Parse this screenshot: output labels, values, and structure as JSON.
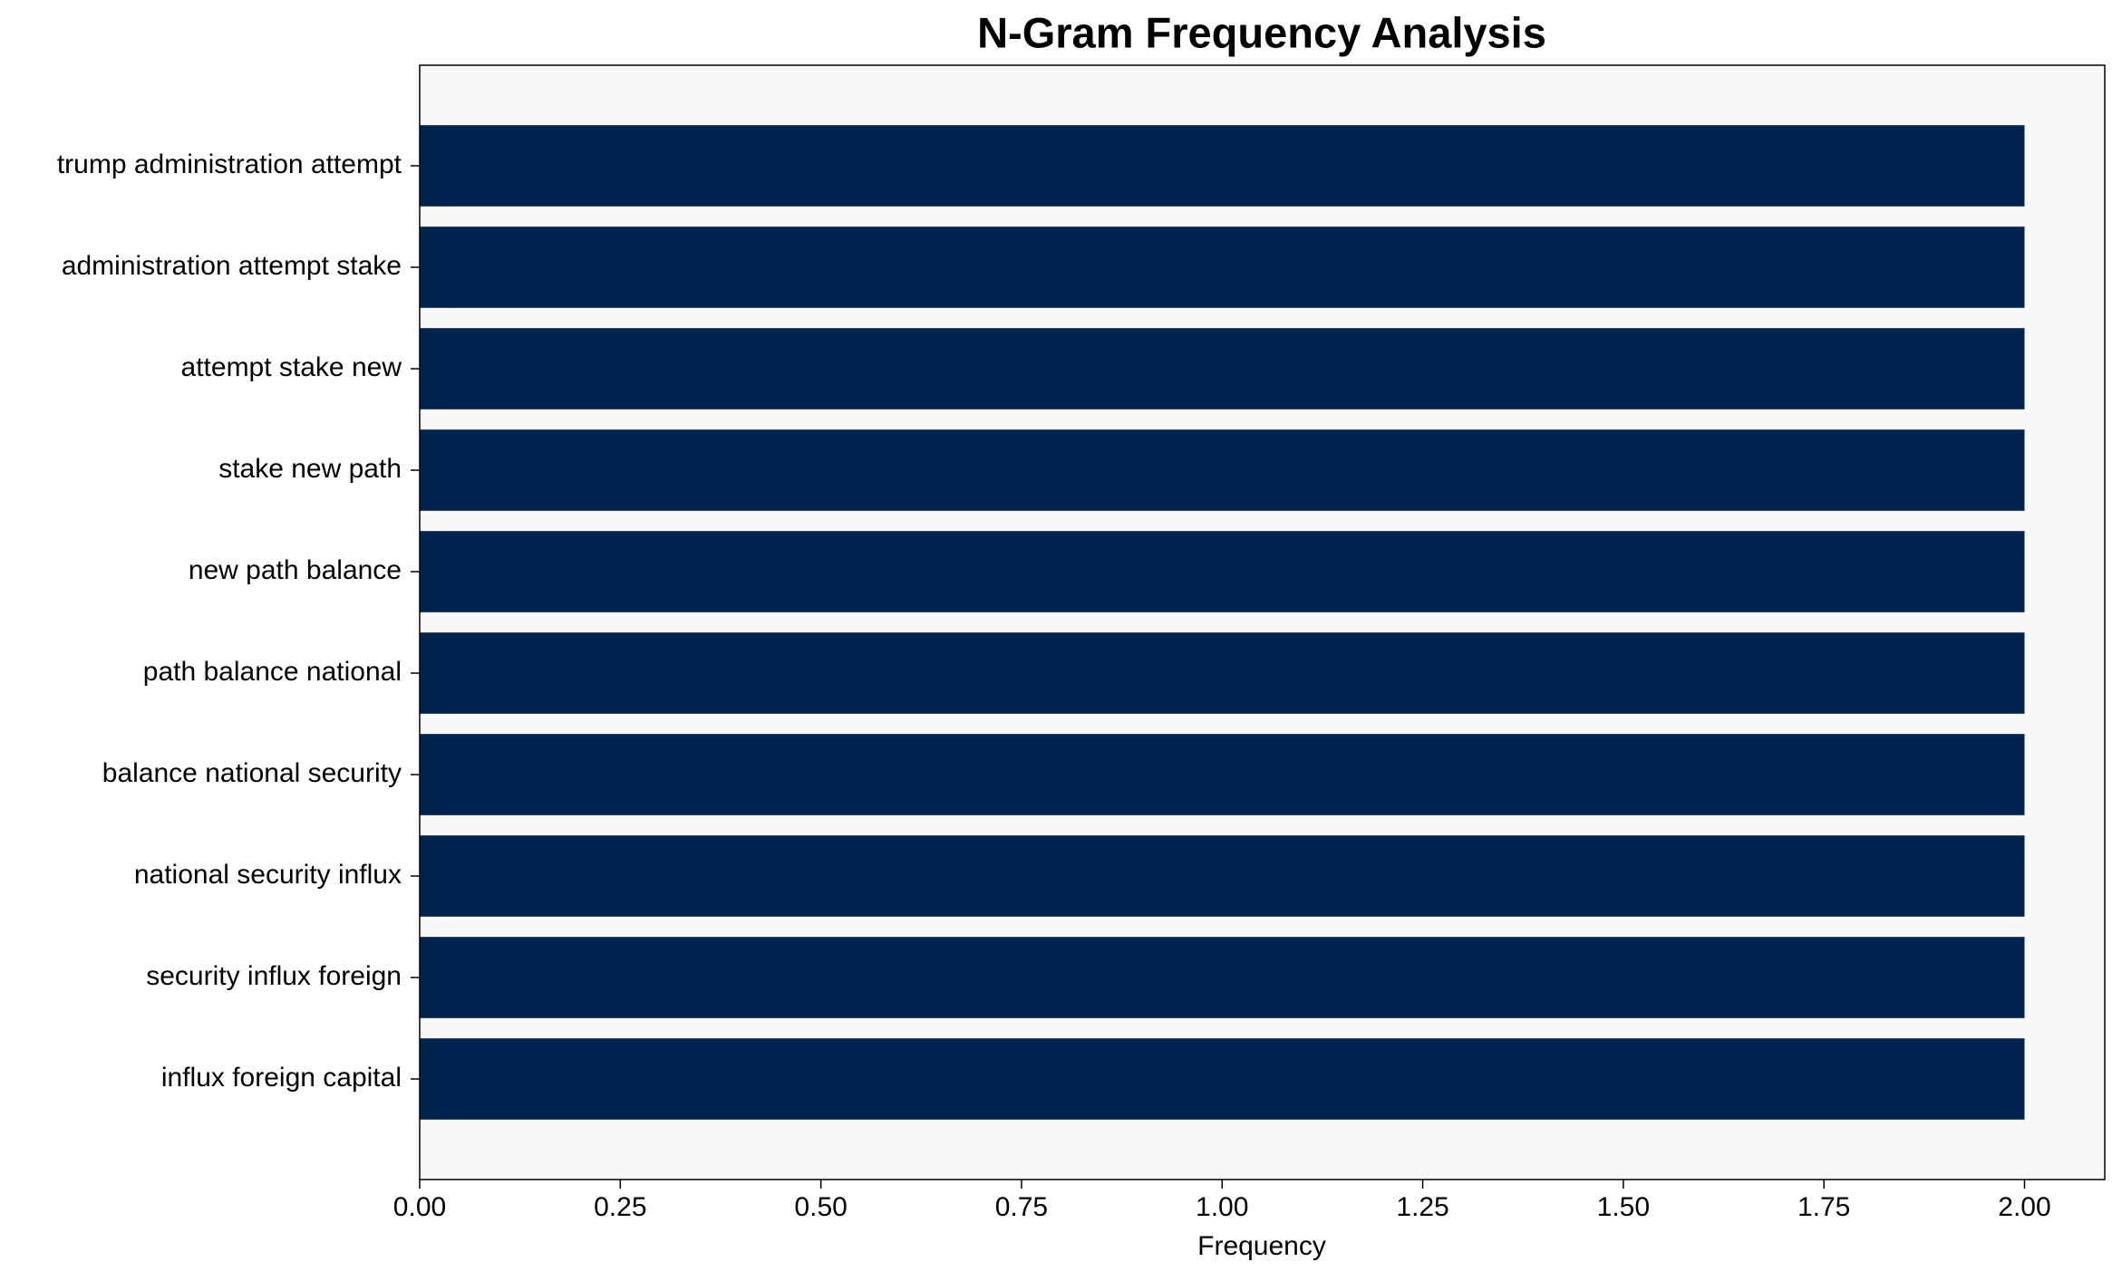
{
  "chart_data": {
    "type": "barh",
    "title": "N-Gram Frequency Analysis",
    "xlabel": "Frequency",
    "categories": [
      "trump administration attempt",
      "administration attempt stake",
      "attempt stake new",
      "stake new path",
      "new path balance",
      "path balance national",
      "balance national security",
      "national security influx",
      "security influx foreign",
      "influx foreign capital"
    ],
    "values": [
      2,
      2,
      2,
      2,
      2,
      2,
      2,
      2,
      2,
      2
    ],
    "color": "#00224e",
    "xlim": [
      0,
      2.1
    ],
    "xticks": [
      {
        "value": 0,
        "label": "0.00"
      },
      0.25,
      {
        "value": 0.5,
        "label": "0.50"
      },
      0.75,
      {
        "value": 1,
        "label": "1.00"
      },
      1.25,
      {
        "value": 1.5,
        "label": "1.50"
      },
      1.75,
      {
        "value": 2,
        "label": "2.00"
      }
    ],
    "grid": false
  }
}
